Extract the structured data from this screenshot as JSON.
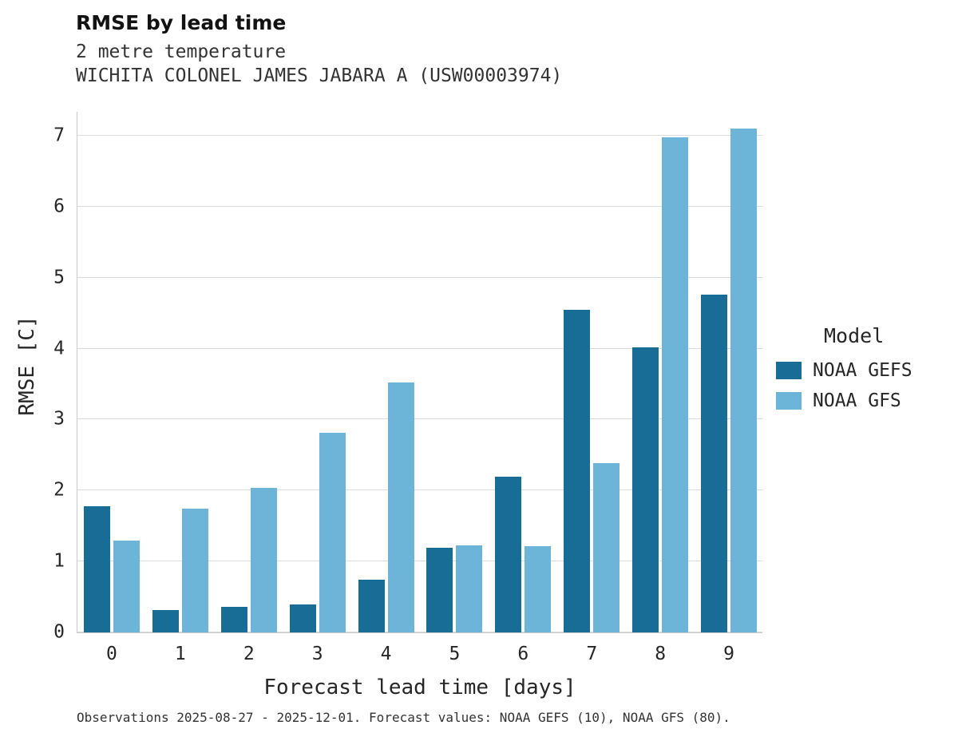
{
  "title": "RMSE by lead time",
  "subtitle1": "2 metre temperature",
  "subtitle2": "WICHITA COLONEL JAMES JABARA A (USW00003974)",
  "caption": "Observations 2025-08-27 - 2025-12-01. Forecast values: NOAA GEFS (10), NOAA GFS (80).",
  "legend": {
    "title": "Model"
  },
  "chart_data": {
    "type": "bar",
    "title": "RMSE by lead time",
    "xlabel": "Forecast lead time [days]",
    "ylabel": "RMSE [C]",
    "categories": [
      "0",
      "1",
      "2",
      "3",
      "4",
      "5",
      "6",
      "7",
      "8",
      "9"
    ],
    "series": [
      {
        "name": "NOAA GEFS",
        "color": "#176d96",
        "values": [
          1.78,
          0.32,
          0.36,
          0.39,
          0.74,
          1.19,
          2.19,
          4.55,
          4.02,
          4.76
        ]
      },
      {
        "name": "NOAA GFS",
        "color": "#6db4d9",
        "values": [
          1.29,
          1.75,
          2.04,
          2.81,
          3.52,
          1.23,
          1.22,
          2.39,
          6.98,
          7.1
        ]
      }
    ],
    "ylim": [
      0,
      7.35
    ],
    "yticks": [
      0,
      1,
      2,
      3,
      4,
      5,
      6,
      7
    ],
    "grid": true,
    "legend_title": "Model",
    "legend_position": "right"
  }
}
